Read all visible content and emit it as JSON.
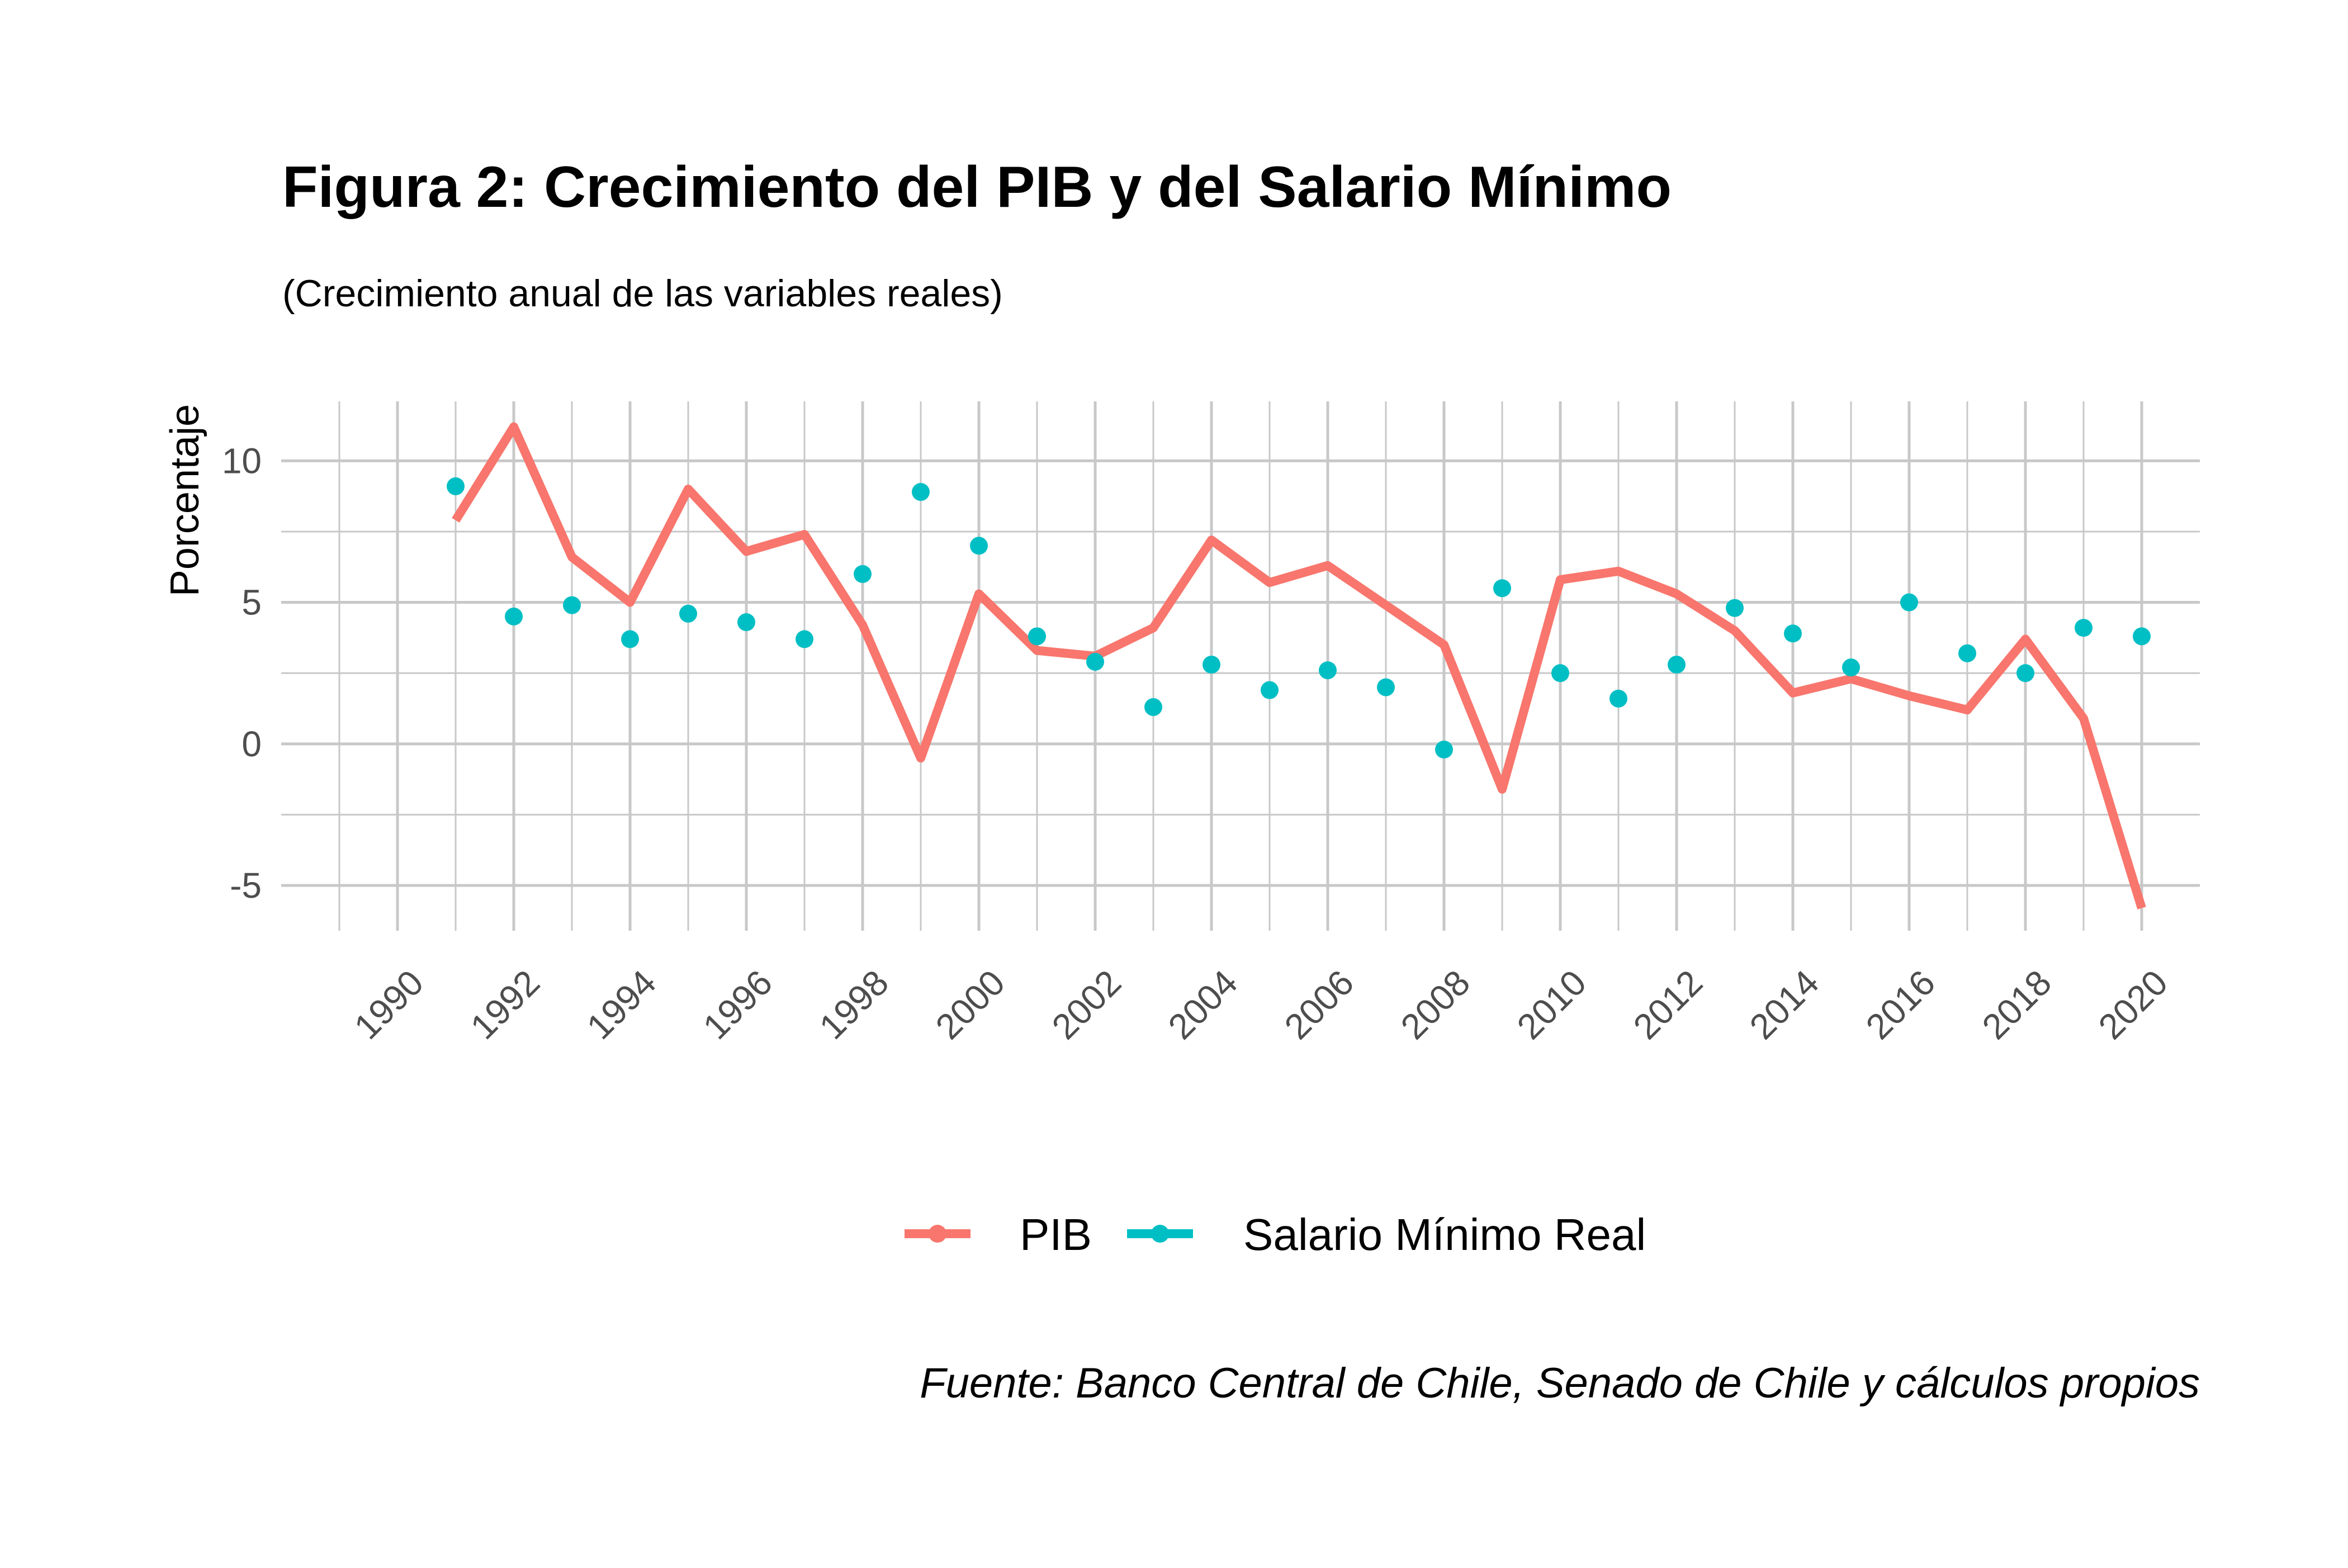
{
  "chart_data": {
    "type": "line",
    "title": "Figura 2: Crecimiento del PIB y del Salario Mínimo",
    "subtitle": "(Crecimiento anual de las variables reales)",
    "ylabel": "Porcentaje",
    "xlabel": "",
    "caption": "Fuente: Banco Central de Chile, Senado de Chile y cálculos propios",
    "xlim": [
      1988,
      2021
    ],
    "ylim": [
      -6.6,
      12.1
    ],
    "x_ticks": [
      "1990",
      "1992",
      "1994",
      "1996",
      "1998",
      "2000",
      "2002",
      "2004",
      "2006",
      "2008",
      "2010",
      "2012",
      "2014",
      "2016",
      "2018",
      "2020"
    ],
    "y_ticks": [
      "-5",
      "0",
      "5",
      "10"
    ],
    "grid": true,
    "legend_position": "bottom",
    "x": [
      1991,
      1992,
      1993,
      1994,
      1995,
      1996,
      1997,
      1998,
      1999,
      2000,
      2001,
      2002,
      2003,
      2004,
      2005,
      2006,
      2007,
      2008,
      2009,
      2010,
      2011,
      2012,
      2013,
      2014,
      2015,
      2016,
      2017,
      2018,
      2019,
      2020
    ],
    "series": [
      {
        "name": "PIB",
        "style": "line",
        "color": "#F8766D",
        "values": [
          7.9,
          11.2,
          6.6,
          5.0,
          9.0,
          6.8,
          7.4,
          4.2,
          -0.5,
          5.3,
          3.3,
          3.1,
          4.1,
          7.2,
          5.7,
          6.3,
          4.9,
          3.5,
          -1.6,
          5.8,
          6.1,
          5.3,
          4.0,
          1.8,
          2.3,
          1.7,
          1.2,
          3.7,
          0.9,
          -5.8
        ]
      },
      {
        "name": "Salario Mínimo Real",
        "style": "points",
        "color": "#00BFC4",
        "values": [
          9.1,
          4.5,
          4.9,
          3.7,
          4.6,
          4.3,
          3.7,
          6.0,
          8.9,
          7.0,
          3.8,
          2.9,
          1.3,
          2.8,
          1.9,
          2.6,
          2.0,
          -0.2,
          5.5,
          2.5,
          1.6,
          2.8,
          4.8,
          3.9,
          2.7,
          5.0,
          3.2,
          2.5,
          4.1,
          3.8
        ]
      }
    ]
  }
}
